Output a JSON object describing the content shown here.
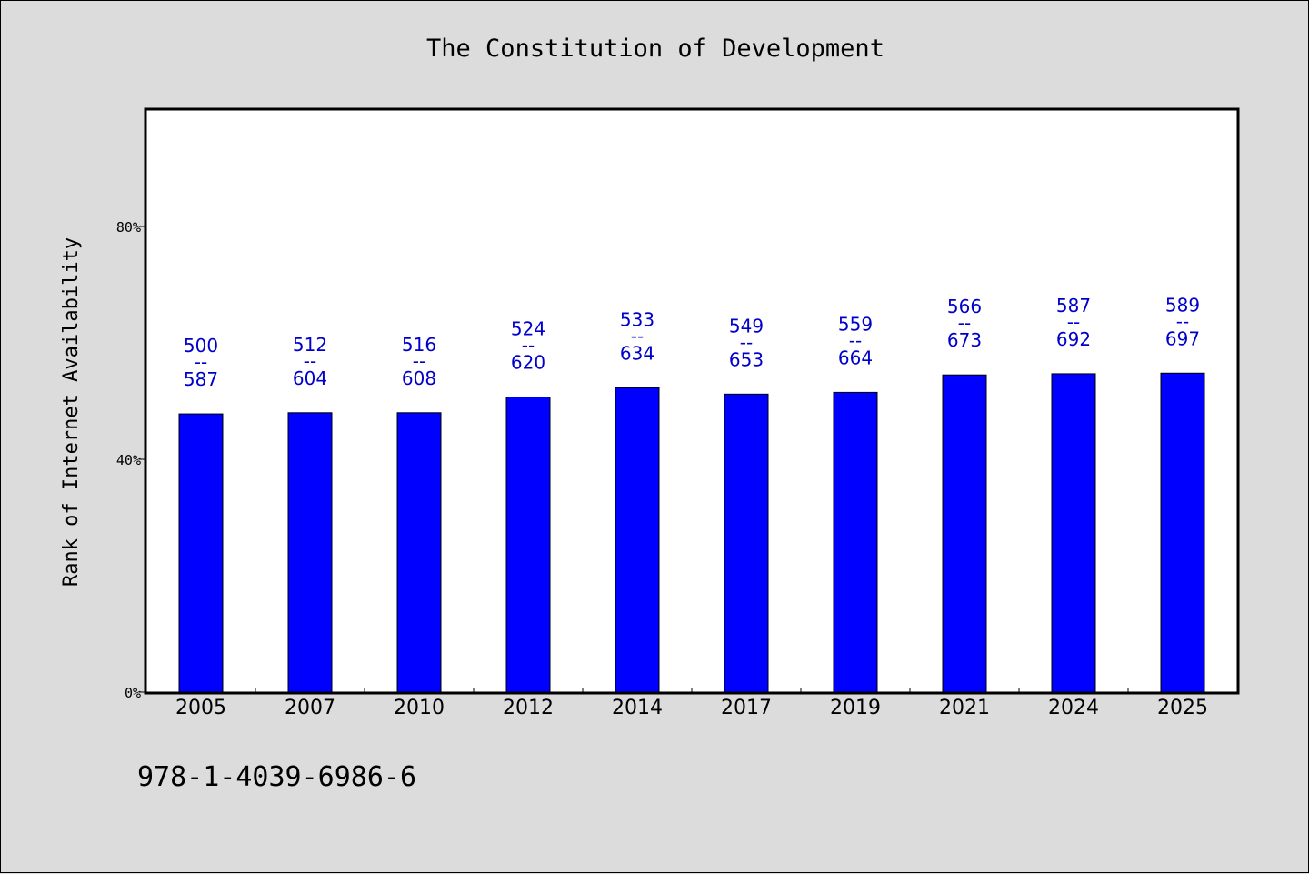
{
  "footer": {
    "isbn": "978-1-4039-6986-6"
  },
  "chart_data": {
    "type": "bar",
    "title": "The Constitution of Development",
    "xlabel": "",
    "ylabel": "Rank of Internet Availability",
    "ylim": [
      0,
      100
    ],
    "y_ticks": [
      {
        "value": 0,
        "label": "0%"
      },
      {
        "value": 40,
        "label": "40%"
      },
      {
        "value": 80,
        "label": "80%"
      }
    ],
    "grid": false,
    "legend": "none",
    "bar_color": "#0000ff",
    "label_color": "#0000cc",
    "categories": [
      "2005",
      "2007",
      "2010",
      "2012",
      "2014",
      "2017",
      "2019",
      "2021",
      "2024",
      "2025"
    ],
    "values": [
      47.8,
      48.0,
      48.0,
      50.7,
      52.3,
      51.2,
      51.5,
      54.5,
      54.7,
      54.8
    ],
    "data_labels": [
      {
        "low": "500",
        "high": "587"
      },
      {
        "low": "512",
        "high": "604"
      },
      {
        "low": "516",
        "high": "608"
      },
      {
        "low": "524",
        "high": "620"
      },
      {
        "low": "533",
        "high": "634"
      },
      {
        "low": "549",
        "high": "653"
      },
      {
        "low": "559",
        "high": "664"
      },
      {
        "low": "566",
        "high": "673"
      },
      {
        "low": "587",
        "high": "692"
      },
      {
        "low": "589",
        "high": "697"
      }
    ],
    "label_separator": "--"
  }
}
